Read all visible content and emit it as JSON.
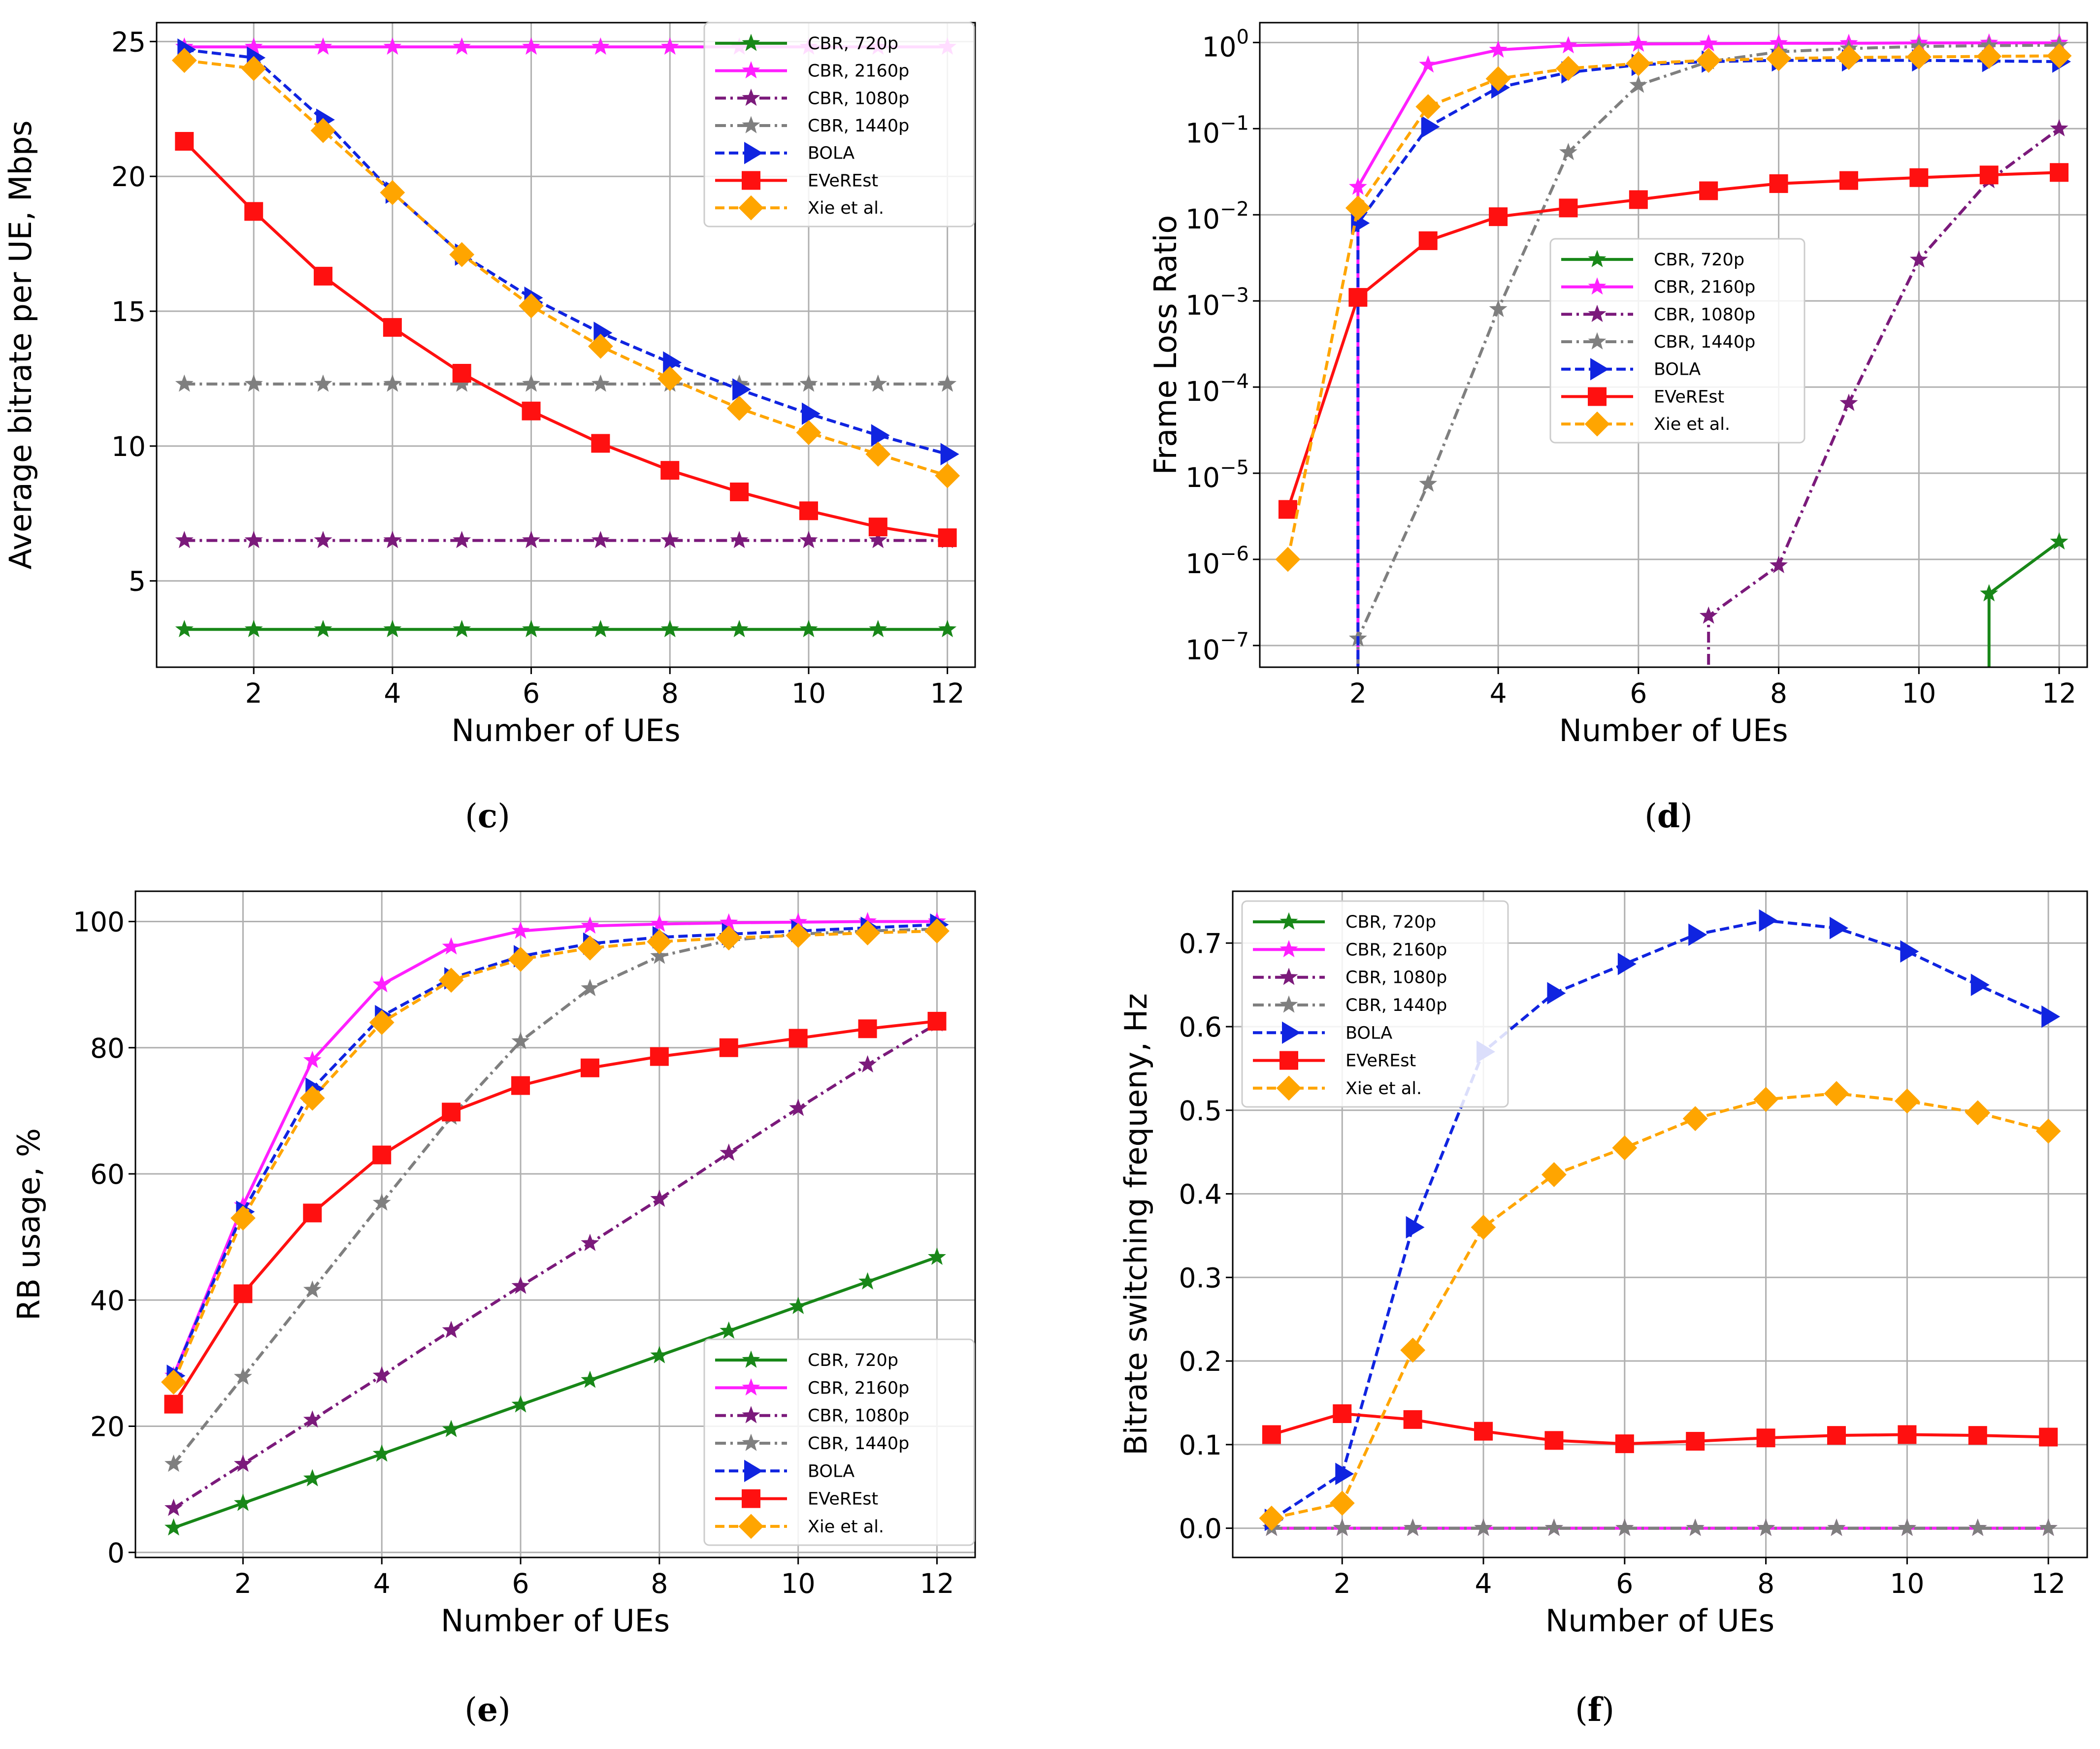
{
  "panel_captions": [
    "(c)",
    "(d)",
    "(e)",
    "(f)"
  ],
  "colors": {
    "CBR, 720p": "#188718",
    "CBR, 2160p": "#ff1fff",
    "CBR, 1080p": "#7b1a7b",
    "CBR, 1440p": "#7f7f7f",
    "BOLA": "#1024e0",
    "EVeREst": "#ff1010",
    "Xie et al.": "#ffa500"
  },
  "chart_data": [
    {
      "id": "c",
      "type": "line",
      "title": "",
      "xlabel": "Number of UEs",
      "ylabel": "Average bitrate per UE, Mbps",
      "x": [
        1,
        2,
        3,
        4,
        5,
        6,
        7,
        8,
        9,
        10,
        11,
        12
      ],
      "xlim": [
        0.6,
        12.4
      ],
      "ylim": [
        1.8,
        25.7
      ],
      "yscale": "linear",
      "xticks": [
        "2",
        "4",
        "6",
        "8",
        "10",
        "12"
      ],
      "yticks": [
        "5",
        "10",
        "15",
        "20",
        "25"
      ],
      "grid": true,
      "legend_position": "top-right",
      "series": [
        {
          "name": "CBR, 720p",
          "values": [
            3.2,
            3.2,
            3.2,
            3.2,
            3.2,
            3.2,
            3.2,
            3.2,
            3.2,
            3.2,
            3.2,
            3.2
          ]
        },
        {
          "name": "CBR, 2160p",
          "values": [
            24.8,
            24.8,
            24.8,
            24.8,
            24.8,
            24.8,
            24.8,
            24.8,
            24.8,
            24.8,
            24.8,
            24.8
          ]
        },
        {
          "name": "CBR, 1080p",
          "values": [
            6.5,
            6.5,
            6.5,
            6.5,
            6.5,
            6.5,
            6.5,
            6.5,
            6.5,
            6.5,
            6.5,
            6.5
          ]
        },
        {
          "name": "CBR, 1440p",
          "values": [
            12.3,
            12.3,
            12.3,
            12.3,
            12.3,
            12.3,
            12.3,
            12.3,
            12.3,
            12.3,
            12.3,
            12.3
          ]
        },
        {
          "name": "BOLA",
          "values": [
            24.7,
            24.4,
            22.1,
            19.4,
            17.1,
            15.5,
            14.2,
            13.1,
            12.1,
            11.2,
            10.4,
            9.7
          ]
        },
        {
          "name": "EVeREst",
          "values": [
            21.3,
            18.7,
            16.3,
            14.4,
            12.7,
            11.3,
            10.1,
            9.1,
            8.3,
            7.6,
            7.0,
            6.6
          ]
        },
        {
          "name": "Xie et al.",
          "values": [
            24.3,
            24.0,
            21.7,
            19.4,
            17.1,
            15.2,
            13.7,
            12.5,
            11.4,
            10.5,
            9.7,
            8.9
          ]
        }
      ]
    },
    {
      "id": "d",
      "type": "line",
      "title": "",
      "xlabel": "Number of UEs",
      "ylabel": "Frame Loss Ratio",
      "x": [
        1,
        2,
        3,
        4,
        5,
        6,
        7,
        8,
        9,
        10,
        11,
        12
      ],
      "xlim": [
        0.6,
        12.4
      ],
      "ylim": [
        5.6e-08,
        1.7
      ],
      "yscale": "log",
      "xticks": [
        "2",
        "4",
        "6",
        "8",
        "10",
        "12"
      ],
      "yticks": [
        "10^-7",
        "10^-6",
        "10^-5",
        "10^-4",
        "10^-3",
        "10^-2",
        "10^-1",
        "10^0"
      ],
      "grid": true,
      "legend_position": "center",
      "series": [
        {
          "name": "CBR, 720p",
          "values": [
            null,
            null,
            null,
            null,
            null,
            null,
            null,
            null,
            null,
            null,
            4e-07,
            1.6e-06
          ]
        },
        {
          "name": "CBR, 2160p",
          "values": [
            null,
            0.021,
            0.55,
            0.82,
            0.92,
            0.96,
            0.97,
            0.98,
            0.98,
            0.99,
            0.99,
            0.99
          ]
        },
        {
          "name": "CBR, 1080p",
          "values": [
            null,
            null,
            null,
            null,
            null,
            null,
            2.2e-07,
            8.5e-07,
            6.5e-05,
            0.003,
            0.025,
            0.1
          ]
        },
        {
          "name": "CBR, 1440p",
          "values": [
            null,
            1.2e-07,
            7.5e-06,
            0.0008,
            0.053,
            0.32,
            0.6,
            0.78,
            0.85,
            0.9,
            0.92,
            0.93
          ]
        },
        {
          "name": "BOLA",
          "values": [
            null,
            0.008,
            0.105,
            0.3,
            0.45,
            0.55,
            0.6,
            0.62,
            0.62,
            0.62,
            0.61,
            0.6
          ]
        },
        {
          "name": "EVeREst",
          "values": [
            3.8e-06,
            0.0011,
            0.005,
            0.0095,
            0.012,
            0.015,
            0.019,
            0.023,
            0.025,
            0.027,
            0.029,
            0.031
          ]
        },
        {
          "name": "Xie et al.",
          "values": [
            1e-06,
            0.012,
            0.18,
            0.38,
            0.5,
            0.57,
            0.62,
            0.65,
            0.67,
            0.68,
            0.69,
            0.7
          ]
        }
      ]
    },
    {
      "id": "e",
      "type": "line",
      "title": "",
      "xlabel": "Number of UEs",
      "ylabel": "RB usage, %",
      "x": [
        1,
        2,
        3,
        4,
        5,
        6,
        7,
        8,
        9,
        10,
        11,
        12
      ],
      "xlim": [
        0.45,
        12.55
      ],
      "ylim": [
        -0.8,
        104.8
      ],
      "yscale": "linear",
      "xticks": [
        "2",
        "4",
        "6",
        "8",
        "10",
        "12"
      ],
      "yticks": [
        "0",
        "20",
        "40",
        "60",
        "80",
        "100"
      ],
      "grid": true,
      "legend_position": "bottom-right",
      "series": [
        {
          "name": "CBR, 720p",
          "values": [
            3.9,
            7.8,
            11.7,
            15.6,
            19.5,
            23.4,
            27.3,
            31.2,
            35.1,
            39.0,
            42.9,
            46.8
          ]
        },
        {
          "name": "CBR, 2160p",
          "values": [
            28.0,
            55.0,
            78.0,
            90.0,
            96.0,
            98.5,
            99.3,
            99.6,
            99.8,
            99.9,
            100.0,
            100.0
          ]
        },
        {
          "name": "CBR, 1080p",
          "values": [
            7.0,
            14.0,
            21.0,
            28.0,
            35.2,
            42.2,
            49.0,
            56.0,
            63.3,
            70.4,
            77.3,
            83.8
          ]
        },
        {
          "name": "CBR, 1440p",
          "values": [
            14.0,
            27.8,
            41.6,
            55.4,
            69.0,
            81.0,
            89.4,
            94.5,
            97.0,
            98.0,
            98.5,
            98.8
          ]
        },
        {
          "name": "BOLA",
          "values": [
            28.0,
            54.0,
            73.5,
            85.0,
            91.0,
            94.5,
            96.5,
            97.5,
            98.0,
            98.5,
            99.0,
            99.5
          ]
        },
        {
          "name": "EVeREst",
          "values": [
            23.5,
            41.0,
            53.8,
            63.0,
            69.8,
            74.0,
            76.8,
            78.6,
            80.0,
            81.5,
            83.0,
            84.2
          ]
        },
        {
          "name": "Xie et al.",
          "values": [
            27.0,
            53.0,
            72.0,
            84.0,
            90.7,
            94.0,
            95.8,
            96.8,
            97.4,
            97.8,
            98.2,
            98.5
          ]
        }
      ]
    },
    {
      "id": "f",
      "type": "line",
      "title": "",
      "xlabel": "Number of UEs",
      "ylabel": "Bitrate switching frequeny, Hz",
      "x": [
        1,
        2,
        3,
        4,
        5,
        6,
        7,
        8,
        9,
        10,
        11,
        12
      ],
      "xlim": [
        0.45,
        12.55
      ],
      "ylim": [
        -0.035,
        0.762
      ],
      "yscale": "linear",
      "xticks": [
        "2",
        "4",
        "6",
        "8",
        "10",
        "12"
      ],
      "yticks": [
        "0.0",
        "0.1",
        "0.2",
        "0.3",
        "0.4",
        "0.5",
        "0.6",
        "0.7"
      ],
      "grid": true,
      "legend_position": "top-left",
      "series": [
        {
          "name": "CBR, 720p",
          "values": [
            0,
            0,
            0,
            0,
            0,
            0,
            0,
            0,
            0,
            0,
            0,
            0
          ]
        },
        {
          "name": "CBR, 2160p",
          "values": [
            0,
            0,
            0,
            0,
            0,
            0,
            0,
            0,
            0,
            0,
            0,
            0
          ]
        },
        {
          "name": "CBR, 1080p",
          "values": [
            0,
            0,
            0,
            0,
            0,
            0,
            0,
            0,
            0,
            0,
            0,
            0
          ]
        },
        {
          "name": "CBR, 1440p",
          "values": [
            0,
            0,
            0,
            0,
            0,
            0,
            0,
            0,
            0,
            0,
            0,
            0
          ]
        },
        {
          "name": "BOLA",
          "values": [
            0.01,
            0.065,
            0.36,
            0.57,
            0.64,
            0.675,
            0.71,
            0.727,
            0.718,
            0.69,
            0.65,
            0.612
          ]
        },
        {
          "name": "EVeREst",
          "values": [
            0.112,
            0.137,
            0.13,
            0.116,
            0.105,
            0.101,
            0.104,
            0.108,
            0.111,
            0.112,
            0.111,
            0.109
          ]
        },
        {
          "name": "Xie et al.",
          "values": [
            0.012,
            0.03,
            0.213,
            0.36,
            0.423,
            0.455,
            0.49,
            0.513,
            0.52,
            0.511,
            0.497,
            0.475
          ]
        }
      ]
    }
  ]
}
